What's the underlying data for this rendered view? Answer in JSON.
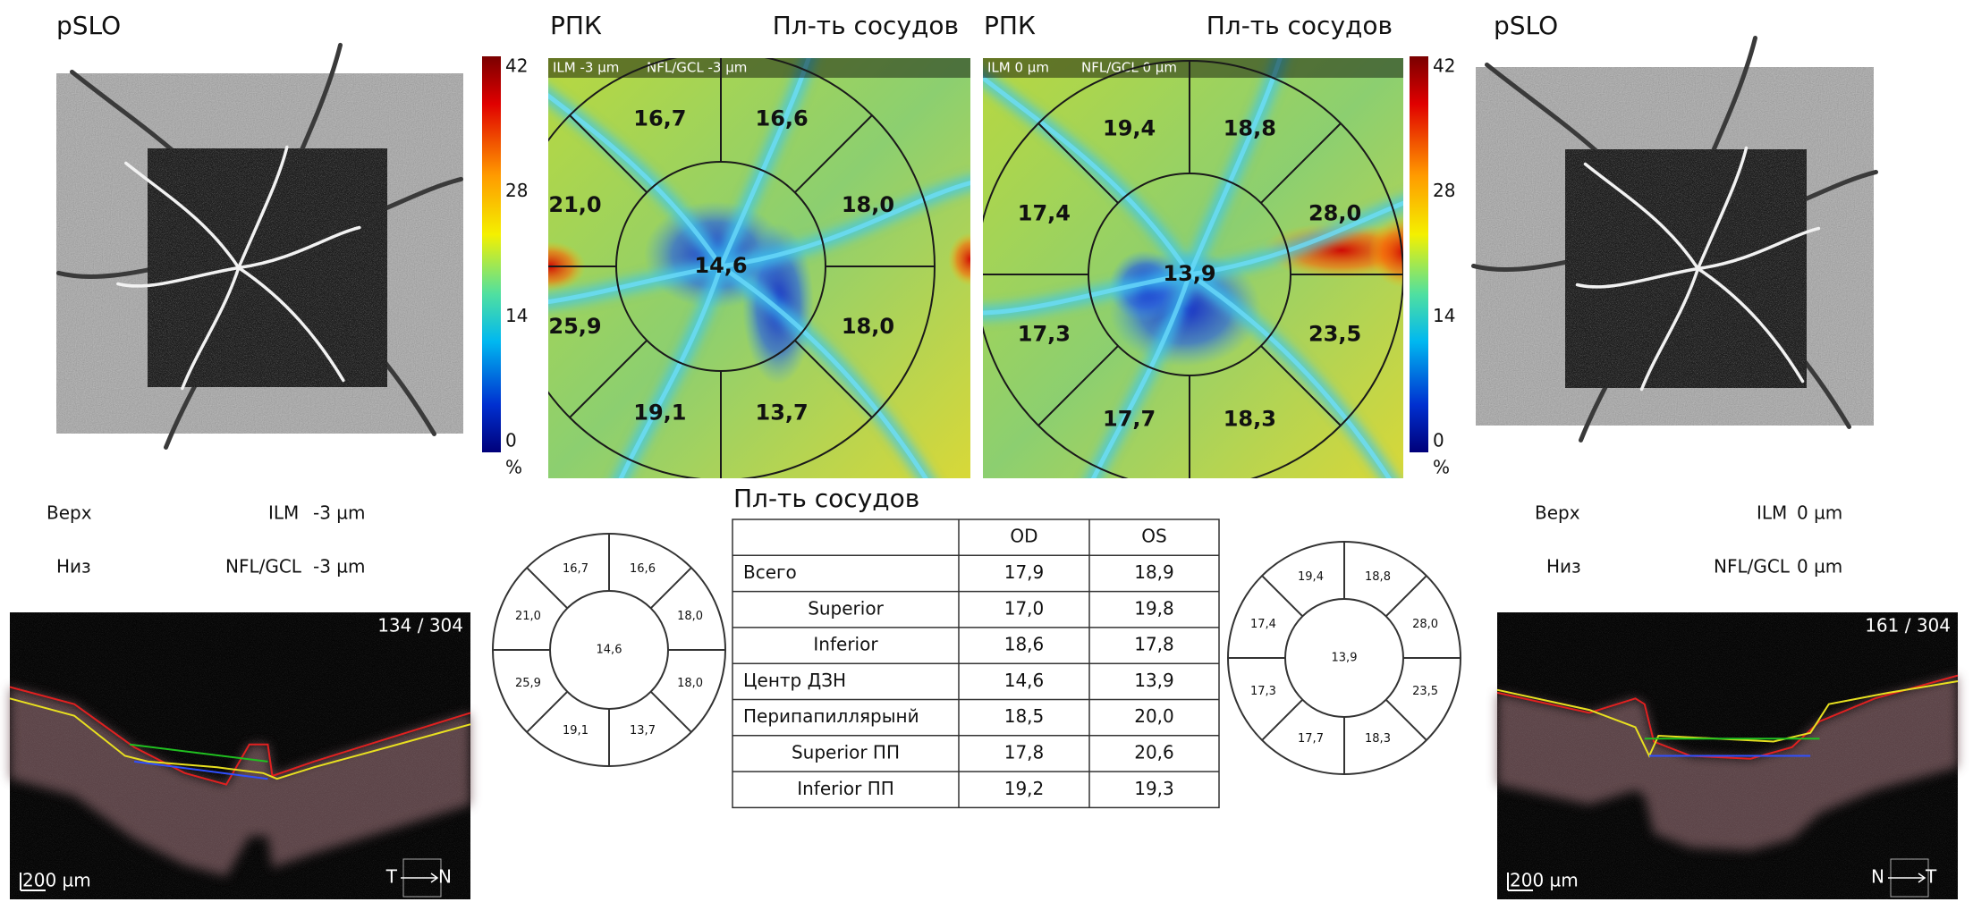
{
  "left": {
    "slo_title": "pSLO",
    "map_title": "РПК",
    "map_subtitle": "Пл-ть сосудов",
    "scale_ticks": [
      42,
      28,
      14,
      0
    ],
    "scale_unit": "%",
    "map_overlay": [
      "ILM -3 µm",
      "NFL/GCL -3 µm"
    ],
    "center": "14,6",
    "sectors": [
      "16,7",
      "16,6",
      "18,0",
      "18,0",
      "13,7",
      "19,1",
      "25,9",
      "21,0"
    ],
    "top_label": "Верх",
    "top_layer": "ILM",
    "top_offset": "-3 µm",
    "bottom_label": "Низ",
    "bottom_layer": "NFL/GCL",
    "bottom_offset": "-3 µm",
    "bscan_index": "134 / 304",
    "bscan_scale": "200 µm",
    "dir_from": "T",
    "dir_to": "N"
  },
  "right": {
    "slo_title": "pSLO",
    "map_title": "РПК",
    "map_subtitle": "Пл-ть сосудов",
    "scale_ticks": [
      42,
      28,
      14,
      0
    ],
    "scale_unit": "%",
    "map_overlay": [
      "ILM 0 µm",
      "NFL/GCL 0 µm"
    ],
    "center": "13,9",
    "sectors": [
      "19,4",
      "18,8",
      "28,0",
      "23,5",
      "18,3",
      "17,7",
      "17,3",
      "17,4"
    ],
    "top_label": "Верх",
    "top_layer": "ILM",
    "top_offset": "0 µm",
    "bottom_label": "Низ",
    "bottom_layer": "NFL/GCL",
    "bottom_offset": "0 µm",
    "bscan_index": "161 / 304",
    "bscan_scale": "200 µm",
    "dir_from": "N",
    "dir_to": "T"
  },
  "table": {
    "title": "Пл-ть сосудов",
    "columns": [
      "OD",
      "OS"
    ],
    "rows": [
      [
        "Всего",
        "17,9",
        "18,9"
      ],
      [
        "Superior",
        "17,0",
        "19,8"
      ],
      [
        "Inferior",
        "18,6",
        "17,8"
      ],
      [
        "Центр ДЗН",
        "14,6",
        "13,9"
      ],
      [
        "Перипапиллярынй",
        "18,5",
        "20,0"
      ],
      [
        "Superior ПП",
        "17,8",
        "20,6"
      ],
      [
        "Inferior ПП",
        "19,2",
        "19,3"
      ]
    ]
  }
}
